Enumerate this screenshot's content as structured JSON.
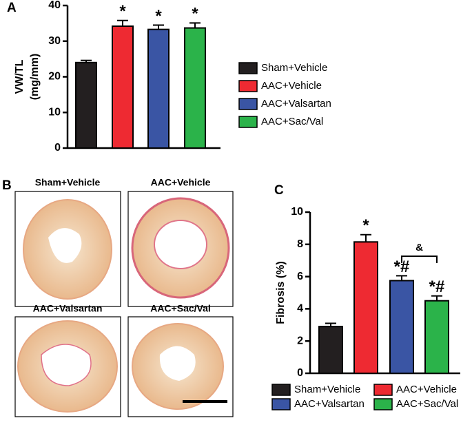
{
  "chart_data": [
    {
      "type": "bar",
      "panel_label": "A",
      "ylabel": [
        "VW/TL",
        "(mg/mm)"
      ],
      "categories": [
        "Sham+Vehicle",
        "AAC+Vehicle",
        "AAC+Valsartan",
        "AAC+Sac/Val"
      ],
      "values": [
        24,
        34.2,
        33.3,
        33.7
      ],
      "errors": [
        0.6,
        1.6,
        1.2,
        1.4
      ],
      "colors": [
        "#231f20",
        "#ee2a32",
        "#3a55a4",
        "#2bb34a"
      ],
      "annotations": [
        null,
        "*",
        "*",
        "*"
      ],
      "ylim": [
        0,
        40
      ],
      "yticks": [
        0,
        10,
        20,
        30,
        40
      ],
      "legend": "right"
    },
    {
      "type": "bar",
      "panel_label": "C",
      "ylabel": [
        "Fibrosis (%)"
      ],
      "categories": [
        "Sham+Vehicle",
        "AAC+Vehicle",
        "AAC+Valsartan",
        "AAC+Sac/Val"
      ],
      "values": [
        2.9,
        8.15,
        5.75,
        4.5
      ],
      "errors": [
        0.2,
        0.45,
        0.3,
        0.3
      ],
      "colors": [
        "#231f20",
        "#ee2a32",
        "#3a55a4",
        "#2bb34a"
      ],
      "annotations": [
        null,
        "*",
        "*#",
        "*#"
      ],
      "bracket_label": "&",
      "ylim": [
        0,
        10
      ],
      "yticks": [
        0,
        2,
        4,
        6,
        8,
        10
      ],
      "legend": "bottom"
    }
  ],
  "histology": {
    "panel_label": "B",
    "titles": [
      "Sham+Vehicle",
      "AAC+Vehicle",
      "AAC+Valsartan",
      "AAC+Sac/Val"
    ]
  }
}
